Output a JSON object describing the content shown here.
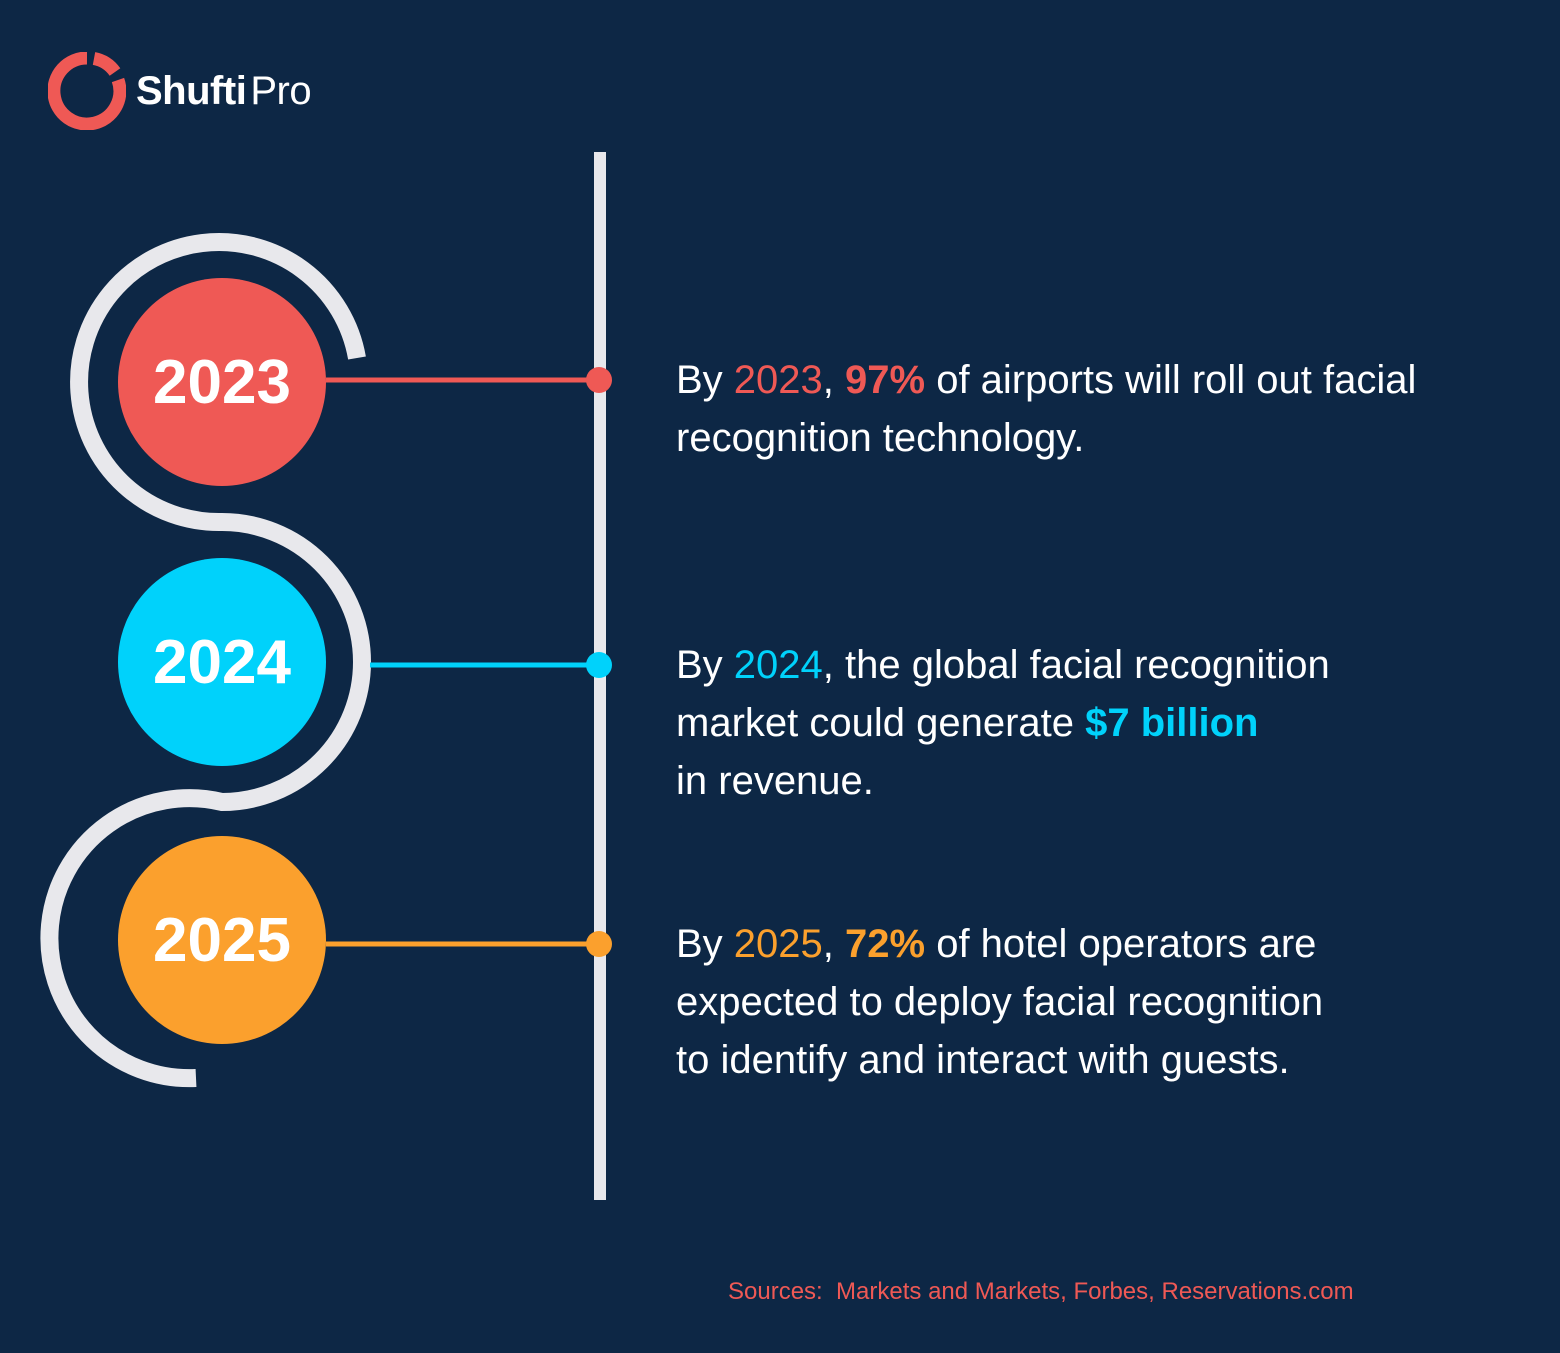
{
  "brand": {
    "name_strong": "Shufti",
    "name_light": "Pro",
    "logo_icon": "ring-logo-icon",
    "logo_color": "#ef5955"
  },
  "colors": {
    "background": "#0d2745",
    "track": "#e8e8ec",
    "red": "#ef5955",
    "cyan": "#00d2fb",
    "orange": "#fba02d"
  },
  "milestones": [
    {
      "year": "2023",
      "color": "#ef5955",
      "text": {
        "prefix": "By ",
        "year_highlight": "2023",
        "sep": ", ",
        "stat": "97%",
        "rest_line1": " of airports will roll out facial",
        "line2": "recognition technology."
      }
    },
    {
      "year": "2024",
      "color": "#00d2fb",
      "text": {
        "prefix": "By ",
        "year_highlight": "2024",
        "rest_line1": ", the global facial recognition",
        "line2_prefix": "market could generate ",
        "stat": "$7 billion",
        "line3": "in revenue."
      }
    },
    {
      "year": "2025",
      "color": "#fba02d",
      "text": {
        "prefix": "By ",
        "year_highlight": "2025",
        "sep": ", ",
        "stat": "72%",
        "rest_line1": " of hotel operators are",
        "line2": "expected to deploy facial recognition",
        "line3": "to identify and interact with guests."
      }
    }
  ],
  "sources": "Sources:  Markets and Markets, Forbes, Reservations.com"
}
